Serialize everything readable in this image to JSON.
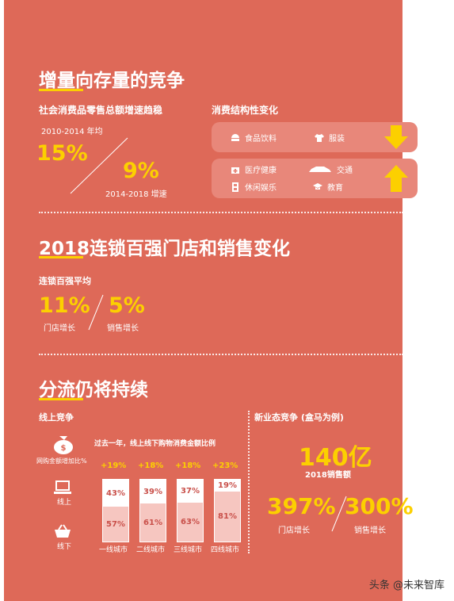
{
  "section1": {
    "title": "增量向存量的竞争",
    "left_subtitle": "社会消费品零售总额增速趋稳",
    "period_a": "2010-2014 年均",
    "value_a": "15%",
    "value_b": "9%",
    "period_b": "2014-2018 增速",
    "right_subtitle": "消费结构性变化",
    "down_items": [
      "食品饮料",
      "服装"
    ],
    "up_items": [
      "医疗健康",
      "交通",
      "休闲娱乐",
      "教育"
    ]
  },
  "section2": {
    "title": "2018连锁百强门店和销售变化",
    "subtitle": "连锁百强平均",
    "store_value": "11%",
    "store_label": "门店增长",
    "sales_value": "5%",
    "sales_label": "销售增长"
  },
  "section3": {
    "title": "分流仍将持续",
    "online_subtitle": "线上竞争",
    "online_growth_label": "网购金额增加比%",
    "chart_caption": "过去一年，线上线下购物消费金额比例",
    "online_label": "线上",
    "offline_label": "线下",
    "new_format_subtitle": "新业态竞争 (盒马为例)",
    "sales_value": "140亿",
    "sales_label": "2018销售额",
    "store_growth_value": "397%",
    "store_growth_label": "门店增长",
    "sales_growth_value": "300%",
    "sales_growth_label": "销售增长"
  },
  "chart_data": {
    "type": "bar",
    "categories": [
      "一线城市",
      "二线城市",
      "三线城市",
      "四线城市"
    ],
    "growth": [
      "+19%",
      "+18%",
      "+18%",
      "+23%"
    ],
    "series": [
      {
        "name": "线上",
        "values": [
          43,
          39,
          37,
          19
        ],
        "labels": [
          "43%",
          "39%",
          "37%",
          "19%"
        ]
      },
      {
        "name": "线下",
        "values": [
          57,
          61,
          63,
          81
        ],
        "labels": [
          "57%",
          "61%",
          "63%",
          "81%"
        ]
      }
    ]
  },
  "watermark": "头条 @未来智库",
  "colors": {
    "background": "#de6958",
    "accent": "#fcd000",
    "pill": "#e8877a"
  }
}
